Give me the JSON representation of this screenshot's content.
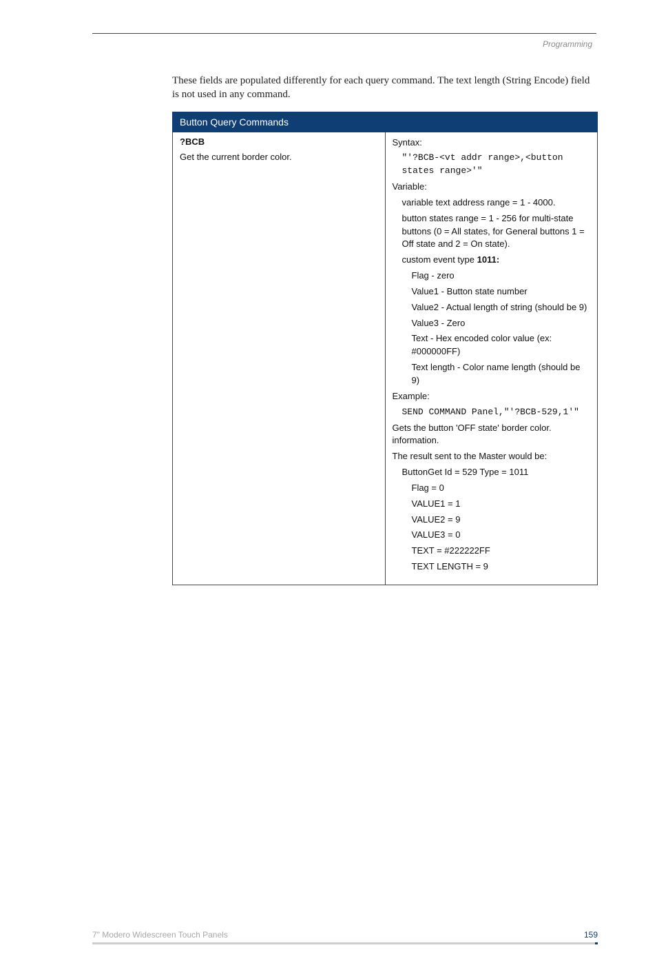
{
  "header": {
    "section": "Programming"
  },
  "intro": "These fields are populated differently for each query command. The text length (String Encode) field is not used in any command.",
  "table": {
    "title": "Button Query Commands",
    "row": {
      "name": "?BCB",
      "desc": "Get the current border color.",
      "content": {
        "syntax_label": "Syntax:",
        "syntax_code": "\"'?BCB-<vt addr range>,<button states range>'\"",
        "variable_label": "Variable:",
        "var1": "variable text address range = 1 - 4000.",
        "var2": "button states range = 1 - 256 for multi-state buttons (0 = All states, for General buttons 1 = Off state and 2 = On state).",
        "event_prefix": "custom event type ",
        "event_number": "1011:",
        "ev1": "Flag   - zero",
        "ev2": "Value1 - Button state number",
        "ev3": "Value2 - Actual length of string (should be 9)",
        "ev4": "Value3 - Zero",
        "ev5": "Text   - Hex encoded color value (ex: #000000FF)",
        "ev6": "Text length - Color name length (should be 9)",
        "example_label": "Example:",
        "example_code": "SEND COMMAND Panel,\"'?BCB-529,1'\"",
        "example_note": "Gets the button 'OFF state' border color. information.",
        "result_label": "The result sent to the Master would be:",
        "r1": "ButtonGet Id = 529 Type = 1011",
        "r2": "Flag  = 0",
        "r3": "VALUE1 = 1",
        "r4": "VALUE2 = 9",
        "r5": "VALUE3 = 0",
        "r6": "TEXT   = #222222FF",
        "r7": "TEXT LENGTH = 9"
      }
    }
  },
  "footer": {
    "left": "7\" Modero Widescreen Touch Panels",
    "page": "159"
  }
}
